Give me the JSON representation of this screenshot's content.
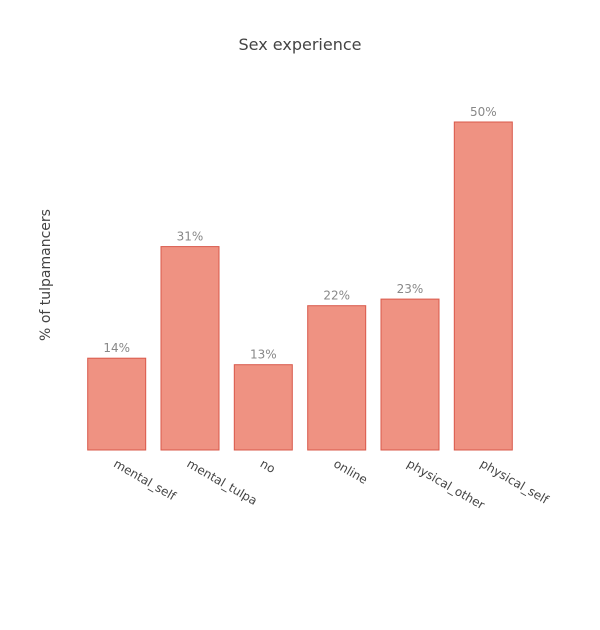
{
  "chart_data": {
    "type": "bar",
    "title": "Sex experience",
    "xlabel": "",
    "ylabel": "% of tulpamancers",
    "categories": [
      "mental_self",
      "mental_tulpa",
      "no",
      "online",
      "physical_other",
      "physical_self"
    ],
    "values": [
      14,
      31,
      13,
      22,
      23,
      50
    ],
    "data_labels": [
      "14%",
      "31%",
      "13%",
      "22%",
      "23%",
      "50%"
    ],
    "ylim": [
      0,
      50
    ],
    "grid": false,
    "legend": "none",
    "colors": {
      "bar_fill": "#ef9282",
      "bar_stroke": "#d9584a"
    }
  }
}
